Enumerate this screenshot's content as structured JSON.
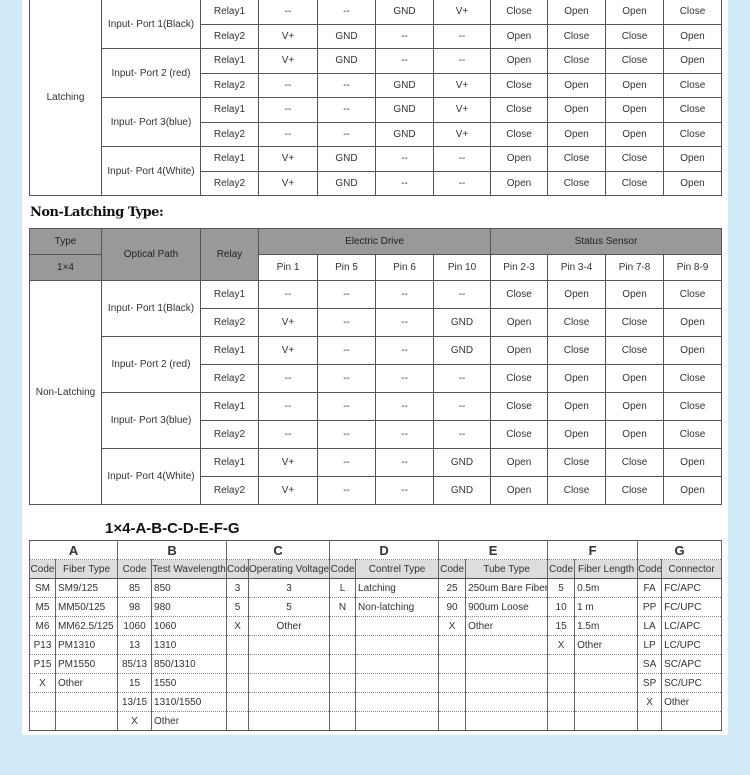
{
  "latching": {
    "type_label": "Latching",
    "ports": [
      "Input- Port 1(Black)",
      "Input- Port 2 (red)",
      "Input- Port 3(blue)",
      "Input- Port 4(White)"
    ],
    "rows": [
      [
        "Relay1",
        "--",
        "--",
        "GND",
        "V+",
        "Close",
        "Open",
        "Open",
        "Close"
      ],
      [
        "Relay2",
        "V+",
        "GND",
        "--",
        "--",
        "Open",
        "Close",
        "Close",
        "Open"
      ],
      [
        "Relay1",
        "V+",
        "GND",
        "--",
        "--",
        "Open",
        "Close",
        "Close",
        "Open"
      ],
      [
        "Relay2",
        "--",
        "--",
        "GND",
        "V+",
        "Close",
        "Open",
        "Open",
        "Close"
      ],
      [
        "Relay1",
        "--",
        "--",
        "GND",
        "V+",
        "Close",
        "Open",
        "Open",
        "Close"
      ],
      [
        "Relay2",
        "--",
        "--",
        "GND",
        "V+",
        "Close",
        "Open",
        "Open",
        "Close"
      ],
      [
        "Relay1",
        "V+",
        "GND",
        "--",
        "--",
        "Open",
        "Close",
        "Close",
        "Open"
      ],
      [
        "Relay2",
        "V+",
        "GND",
        "--",
        "--",
        "Open",
        "Close",
        "Close",
        "Open"
      ]
    ]
  },
  "non_latching": {
    "section_title": "Non-Latching Type:",
    "headers": {
      "type": "Type",
      "type_value": "1×4",
      "optical_path": "Optical Path",
      "relay": "Relay",
      "electric_drive": "Electric Drive",
      "status_sensor": "Status Sensor",
      "pins": [
        "Pin 1",
        "Pin 5",
        "Pin 6",
        "Pin 10",
        "Pin 2-3",
        "Pin 3-4",
        "Pin 7-8",
        "Pin 8-9"
      ]
    },
    "type_label": "Non-Latching",
    "ports": [
      "Input- Port 1(Black)",
      "Input- Port 2 (red)",
      "Input- Port 3(blue)",
      "Input- Port 4(White)"
    ],
    "rows": [
      [
        "Relay1",
        "--",
        "--",
        "--",
        "--",
        "Close",
        "Open",
        "Open",
        "Close"
      ],
      [
        "Relay2",
        "V+",
        "--",
        "--",
        "GND",
        "Open",
        "Close",
        "Close",
        "Open"
      ],
      [
        "Relay1",
        "V+",
        "--",
        "--",
        "GND",
        "Open",
        "Close",
        "Close",
        "Open"
      ],
      [
        "Relay2",
        "--",
        "--",
        "--",
        "--",
        "Close",
        "Open",
        "Open",
        "Close"
      ],
      [
        "Relay1",
        "--",
        "--",
        "--",
        "--",
        "Close",
        "Open",
        "Open",
        "Close"
      ],
      [
        "Relay2",
        "--",
        "--",
        "--",
        "--",
        "Close",
        "Open",
        "Open",
        "Close"
      ],
      [
        "Relay1",
        "V+",
        "--",
        "--",
        "GND",
        "Open",
        "Close",
        "Close",
        "Open"
      ],
      [
        "Relay2",
        "V+",
        "--",
        "--",
        "GND",
        "Open",
        "Close",
        "Close",
        "Open"
      ]
    ]
  },
  "ordering": {
    "title": "1×4-A-B-C-D-E-F-G",
    "groups": [
      "A",
      "B",
      "C",
      "D",
      "E",
      "F",
      "G"
    ],
    "subheaders": [
      "Code",
      "Fiber Type",
      "Code",
      "Test Wavelength",
      "Code",
      "Operating Voltage",
      "Code",
      "Contrel Type",
      "Code",
      "Tube Type",
      "Code",
      "Fiber Length",
      "Code",
      "Connector"
    ],
    "rows": [
      [
        "SM",
        "SM9/125",
        "85",
        "850",
        "3",
        "3",
        "L",
        "Latching",
        "25",
        "250um Bare Fiber",
        "5",
        "0.5m",
        "FA",
        "FC/APC"
      ],
      [
        "M5",
        "MM50/125",
        "98",
        "980",
        "5",
        "5",
        "N",
        "Non-latching",
        "90",
        "900um Loose",
        "10",
        "1 m",
        "PP",
        "FC/UPC"
      ],
      [
        "M6",
        "MM62.5/125",
        "1060",
        "1060",
        "X",
        "Other",
        "",
        "",
        "X",
        "Other",
        "15",
        "1.5m",
        "LA",
        "LC/APC"
      ],
      [
        "P13",
        "PM1310",
        "13",
        "1310",
        "",
        "",
        "",
        "",
        "",
        "",
        "X",
        "Other",
        "LP",
        "LC/UPC"
      ],
      [
        "P15",
        "PM1550",
        "85/13",
        "850/1310",
        "",
        "",
        "",
        "",
        "",
        "",
        "",
        "",
        "SA",
        "SC/APC"
      ],
      [
        "X",
        "Other",
        "15",
        "1550",
        "",
        "",
        "",
        "",
        "",
        "",
        "",
        "",
        "SP",
        "SC/UPC"
      ],
      [
        "",
        "",
        "13/15",
        "1310/1550",
        "",
        "",
        "",
        "",
        "",
        "",
        "",
        "",
        "X",
        "Other"
      ],
      [
        "",
        "",
        "X",
        "Other",
        "",
        "",
        "",
        "",
        "",
        "",
        "",
        "",
        "",
        ""
      ]
    ]
  }
}
